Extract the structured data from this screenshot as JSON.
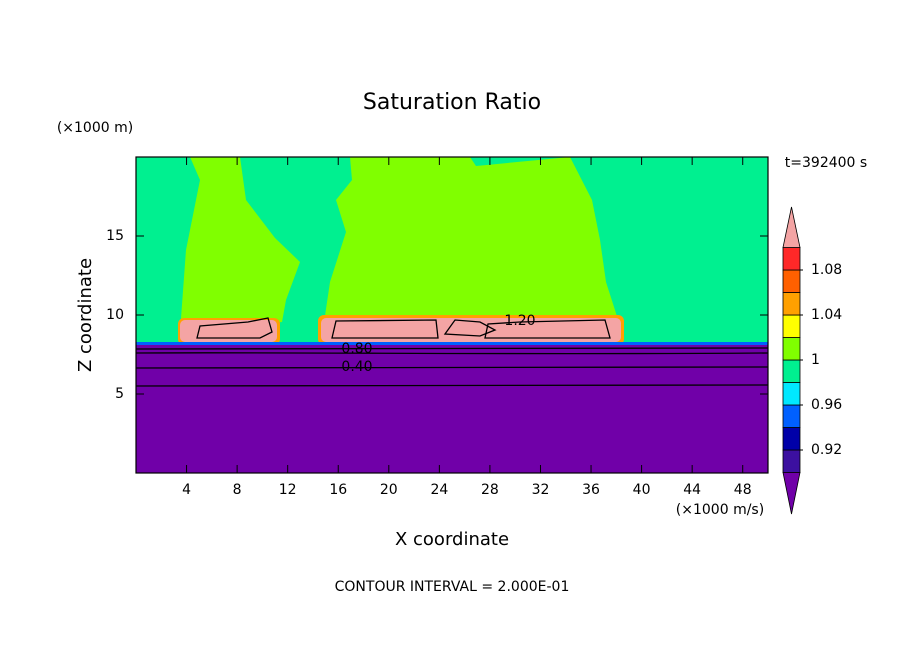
{
  "chart_data": {
    "type": "contour",
    "title": "Saturation Ratio",
    "x_label": "X coordinate",
    "y_label": "Z coordinate",
    "x_unit": "(×1000 m/s)",
    "y_unit": "(×1000 m)",
    "time_label": "t=392400 s",
    "footer": "CONTOUR INTERVAL = 2.000E-01",
    "xlim": [
      0,
      50
    ],
    "xticks": [
      4,
      8,
      12,
      16,
      20,
      24,
      28,
      32,
      36,
      40,
      44,
      48
    ],
    "ylim": [
      0,
      20
    ],
    "yticks": [
      5,
      10,
      15
    ],
    "colorbar": {
      "lim": [
        0.9,
        1.1
      ],
      "ticks": [
        0.92,
        0.96,
        1,
        1.04,
        1.08
      ],
      "levels": [
        0.9,
        0.92,
        0.94,
        0.96,
        0.98,
        1.0,
        1.02,
        1.04,
        1.06,
        1.08,
        1.1
      ],
      "colors": [
        "#3c10a0",
        "#0000a8",
        "#0060ff",
        "#00e8ff",
        "#00f090",
        "#80ff00",
        "#ffff00",
        "#ffa000",
        "#ff6000",
        "#ff2828"
      ],
      "under_color": "#7000a8",
      "over_color": "#f4a4a4"
    },
    "contour_labels": [
      {
        "value": 1.2,
        "label": "1.20"
      },
      {
        "value": 0.8,
        "label": "0.80"
      },
      {
        "value": 0.4,
        "label": "0.40"
      }
    ]
  }
}
